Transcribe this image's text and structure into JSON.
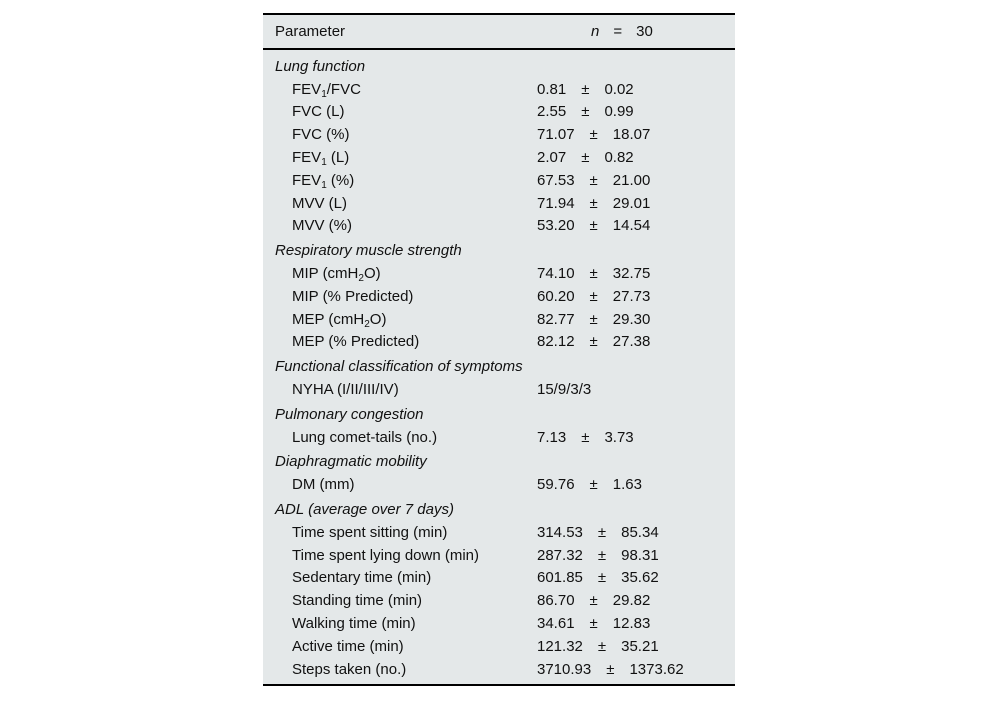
{
  "table": {
    "bg_color": "#e4e8e9",
    "text_color": "#111111",
    "rule_color": "#000000",
    "pm_symbol": "±",
    "header": {
      "parameter_label": "Parameter",
      "n_label": "n",
      "equals": "=",
      "n_value": "30"
    },
    "sections": [
      {
        "title": "Lung function",
        "rows": [
          {
            "label": [
              {
                "text": "FEV"
              },
              {
                "text": "1",
                "sub": true
              },
              {
                "text": "/FVC"
              }
            ],
            "mean": "0.81",
            "sd": "0.02"
          },
          {
            "label": [
              {
                "text": "FVC (L)"
              }
            ],
            "mean": "2.55",
            "sd": "0.99"
          },
          {
            "label": [
              {
                "text": "FVC (%)"
              }
            ],
            "mean": "71.07",
            "sd": "18.07"
          },
          {
            "label": [
              {
                "text": "FEV"
              },
              {
                "text": "1",
                "sub": true
              },
              {
                "text": " (L)"
              }
            ],
            "mean": "2.07",
            "sd": "0.82"
          },
          {
            "label": [
              {
                "text": "FEV"
              },
              {
                "text": "1",
                "sub": true
              },
              {
                "text": " (%)"
              }
            ],
            "mean": "67.53",
            "sd": "21.00"
          },
          {
            "label": [
              {
                "text": "MVV (L)"
              }
            ],
            "mean": "71.94",
            "sd": "29.01"
          },
          {
            "label": [
              {
                "text": "MVV (%)"
              }
            ],
            "mean": "53.20",
            "sd": "14.54"
          }
        ]
      },
      {
        "title": "Respiratory muscle strength",
        "rows": [
          {
            "label": [
              {
                "text": "MIP (cmH"
              },
              {
                "text": "2",
                "sub": true
              },
              {
                "text": "O)"
              }
            ],
            "mean": "74.10",
            "sd": "32.75"
          },
          {
            "label": [
              {
                "text": "MIP (% Predicted)"
              }
            ],
            "mean": "60.20",
            "sd": "27.73"
          },
          {
            "label": [
              {
                "text": "MEP (cmH"
              },
              {
                "text": "2",
                "sub": true
              },
              {
                "text": "O)"
              }
            ],
            "mean": "82.77",
            "sd": "29.30"
          },
          {
            "label": [
              {
                "text": "MEP (% Predicted)"
              }
            ],
            "mean": "82.12",
            "sd": "27.38"
          }
        ]
      },
      {
        "title": "Functional classification of symptoms",
        "rows": [
          {
            "label": [
              {
                "text": "NYHA (I/II/III/IV)"
              }
            ],
            "value": "15/9/3/3"
          }
        ]
      },
      {
        "title": "Pulmonary congestion",
        "rows": [
          {
            "label": [
              {
                "text": "Lung comet-tails (no.)"
              }
            ],
            "mean": "7.13",
            "sd": "3.73"
          }
        ]
      },
      {
        "title": "Diaphragmatic mobility",
        "rows": [
          {
            "label": [
              {
                "text": "DM (mm)"
              }
            ],
            "mean": "59.76",
            "sd": "1.63"
          }
        ]
      },
      {
        "title": "ADL (average over 7 days)",
        "rows": [
          {
            "label": [
              {
                "text": "Time spent sitting (min)"
              }
            ],
            "mean": "314.53",
            "sd": "85.34"
          },
          {
            "label": [
              {
                "text": "Time spent lying down (min)"
              }
            ],
            "mean": "287.32",
            "sd": "98.31"
          },
          {
            "label": [
              {
                "text": "Sedentary time (min)"
              }
            ],
            "mean": "601.85",
            "sd": "35.62"
          },
          {
            "label": [
              {
                "text": "Standing time (min)"
              }
            ],
            "mean": "86.70",
            "sd": "29.82"
          },
          {
            "label": [
              {
                "text": "Walking time (min)"
              }
            ],
            "mean": "34.61",
            "sd": "12.83"
          },
          {
            "label": [
              {
                "text": "Active time (min)"
              }
            ],
            "mean": "121.32",
            "sd": "35.21"
          },
          {
            "label": [
              {
                "text": "Steps taken (no.)"
              }
            ],
            "mean": "3710.93",
            "sd": "1373.62"
          }
        ]
      }
    ]
  }
}
